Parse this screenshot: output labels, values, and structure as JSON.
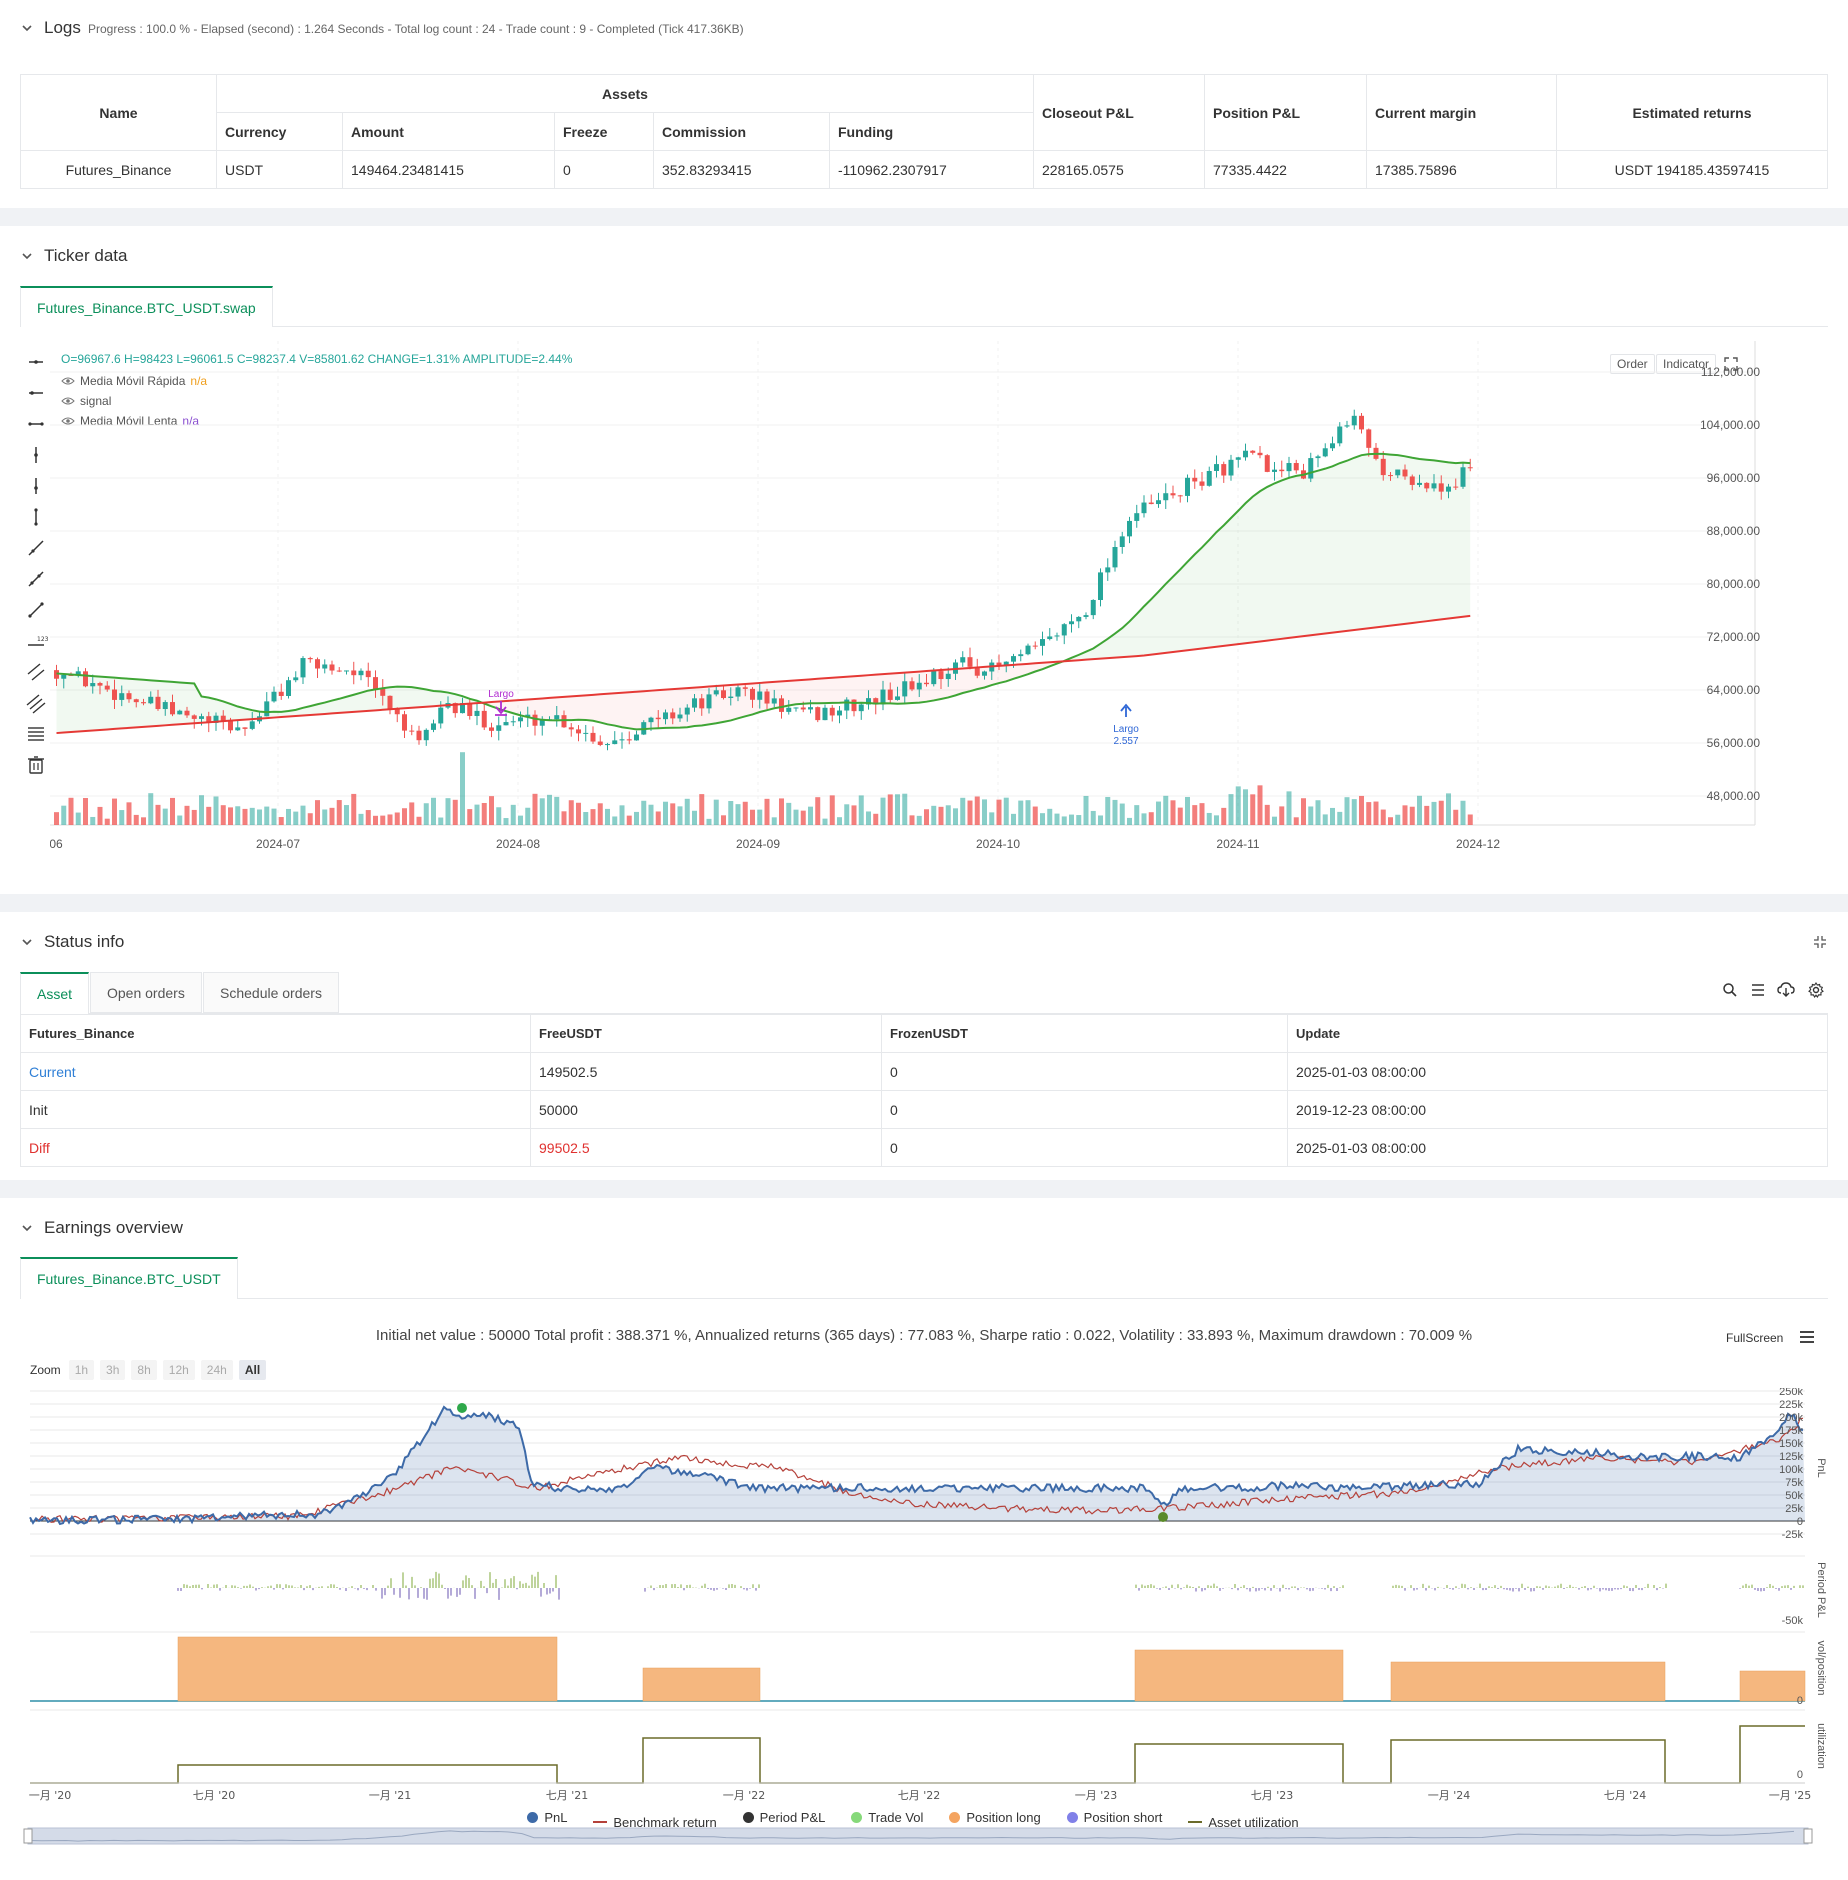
{
  "logs": {
    "title": "Logs",
    "progress": "Progress : 100.0 % - Elapsed (second) : 1.264  Seconds - Total log count : 24 - Trade count : 9 - Completed (Tick 417.36KB)",
    "table": {
      "h_name": "Name",
      "h_assets": "Assets",
      "h_currency": "Currency",
      "h_amount": "Amount",
      "h_freeze": "Freeze",
      "h_commission": "Commission",
      "h_funding": "Funding",
      "h_closeout": "Closeout P&L",
      "h_position": "Position P&L",
      "h_margin": "Current margin",
      "h_returns": "Estimated returns",
      "row": {
        "name": "Futures_Binance",
        "currency": "USDT",
        "amount": "149464.23481415",
        "freeze": "0",
        "commission": "352.83293415",
        "funding": "-110962.2307917",
        "closeout": "228165.0575",
        "position": "77335.4422",
        "margin": "17385.75896",
        "returns": "USDT 194185.43597415"
      }
    }
  },
  "ticker": {
    "title": "Ticker data",
    "tab": "Futures_Binance.BTC_USDT.swap",
    "ohlc": "O=96967.6 H=98423 L=96061.5 C=98237.4 V=85801.62 CHANGE=1.31% AMPLITUDE=2.44%",
    "legend": [
      {
        "label": "Media Móvil Rápida",
        "value": "n/a",
        "color": "#f0a020"
      },
      {
        "label": "signal",
        "value": "",
        "color": "#333333"
      },
      {
        "label": "Media Móvil Lenta",
        "value": "n/a",
        "color": "#8a4fd0"
      }
    ],
    "btn_order": "Order",
    "btn_indicator": "Indicator",
    "y_labels": [
      "112,000.00",
      "104,000.00",
      "96,000.00",
      "88,000.00",
      "80,000.00",
      "72,000.00",
      "64,000.00",
      "56,000.00",
      "48,000.00"
    ],
    "x_labels": [
      "06",
      "2024-07",
      "2024-08",
      "2024-09",
      "2024-10",
      "2024-11",
      "2024-12"
    ],
    "marker1": {
      "label": "Largo"
    },
    "marker2": {
      "label": "Largo",
      "value": "2.557"
    },
    "colors": {
      "up": "#26a69a",
      "down": "#ef5350",
      "fast": "#3fa535",
      "slow": "#e53935"
    }
  },
  "status": {
    "title": "Status info",
    "tabs": [
      "Asset",
      "Open orders",
      "Schedule orders"
    ],
    "headers": [
      "Futures_Binance",
      "FreeUSDT",
      "FrozenUSDT",
      "Update"
    ],
    "rows": [
      {
        "label": "Current",
        "free": "149502.5",
        "frozen": "0",
        "update": "2025-01-03 08:00:00"
      },
      {
        "label": "Init",
        "free": "50000",
        "frozen": "0",
        "update": "2019-12-23 08:00:00"
      },
      {
        "label": "Diff",
        "free": "99502.5",
        "frozen": "0",
        "update": "2025-01-03 08:00:00"
      }
    ]
  },
  "earnings": {
    "title": "Earnings overview",
    "tab": "Futures_Binance.BTC_USDT",
    "summary": "Initial net value : 50000  Total profit : 388.371 %, Annualized returns (365 days) : 77.083 %, Sharpe ratio : 0.022, Volatility : 33.893 %, Maximum drawdown : 70.009 %",
    "fullscreen": "FullScreen",
    "zoom_label": "Zoom",
    "zoom_buttons": [
      "1h",
      "3h",
      "8h",
      "12h",
      "24h",
      "All"
    ],
    "pnl_y_labels": [
      "250k",
      "225k",
      "200k",
      "175k",
      "150k",
      "125k",
      "100k",
      "75k",
      "50k",
      "25k",
      "0",
      "-25k"
    ],
    "period_y_label": "-50k",
    "vol_y_label": "0",
    "util_y_label": "0",
    "axis_titles": [
      "PnL",
      "Period P&L",
      "vol/position",
      "utilization"
    ],
    "x_labels": [
      "一月 '20",
      "七月 '20",
      "一月 '21",
      "七月 '21",
      "一月 '22",
      "七月 '22",
      "一月 '23",
      "七月 '23",
      "一月 '24",
      "七月 '24",
      "一月 '25"
    ],
    "legend": [
      {
        "label": "PnL",
        "color": "#3d6aa8",
        "kind": "dot"
      },
      {
        "label": "Benchmark return",
        "color": "#b5413a",
        "kind": "line"
      },
      {
        "label": "Period P&L",
        "color": "#333333",
        "kind": "dot"
      },
      {
        "label": "Trade Vol",
        "color": "#86d97a",
        "kind": "dot"
      },
      {
        "label": "Position long",
        "color": "#f4a460",
        "kind": "dot"
      },
      {
        "label": "Position short",
        "color": "#8080e8",
        "kind": "dot"
      },
      {
        "label": "Asset utilization",
        "color": "#6b6b2a",
        "kind": "line"
      }
    ]
  }
}
